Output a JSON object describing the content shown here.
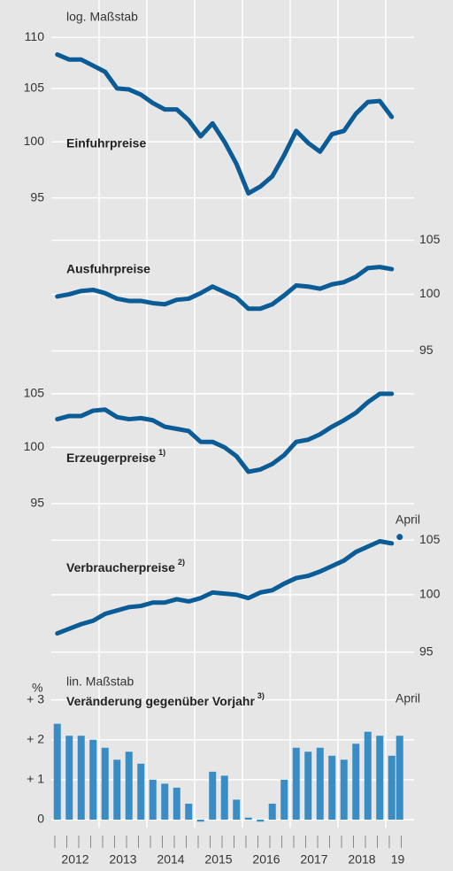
{
  "x_axis": {
    "labels": [
      "2012",
      "2013",
      "2014",
      "2015",
      "2016",
      "2017",
      "2018",
      "19"
    ]
  },
  "chart_data": [
    {
      "type": "line",
      "title": "Einfuhrpreise",
      "scale_label": "log. Maßstab",
      "log": true,
      "color": "#0b5c96",
      "ylim": [
        93,
        112
      ],
      "yticks": [
        95,
        100,
        105,
        110
      ],
      "axis_side": "left",
      "values": [
        108.3,
        107.8,
        107.8,
        107.2,
        106.6,
        105.0,
        104.9,
        104.4,
        103.6,
        103.0,
        103.0,
        102.0,
        100.5,
        101.7,
        100.0,
        98.0,
        95.4,
        96.0,
        96.9,
        98.8,
        101.0,
        99.9,
        99.1,
        100.7,
        101.0,
        102.6,
        103.7,
        103.8,
        102.3
      ]
    },
    {
      "type": "line",
      "title": "Ausfuhrpreise",
      "log": true,
      "color": "#0b5c96",
      "ylim": [
        93.6,
        106.4
      ],
      "yticks": [
        95,
        100,
        105
      ],
      "axis_side": "right",
      "values": [
        99.8,
        100.0,
        100.3,
        100.4,
        100.1,
        99.6,
        99.4,
        99.4,
        99.2,
        99.1,
        99.5,
        99.6,
        100.1,
        100.7,
        100.2,
        99.7,
        98.7,
        98.7,
        99.1,
        99.9,
        100.8,
        100.7,
        100.5,
        100.9,
        101.1,
        101.6,
        102.4,
        102.5,
        102.3
      ]
    },
    {
      "type": "line",
      "title": "Erzeugerpreise",
      "note": "1)",
      "log": true,
      "color": "#0b5c96",
      "ylim": [
        93.4,
        106.7
      ],
      "yticks": [
        95,
        100,
        105
      ],
      "axis_side": "left",
      "values": [
        102.6,
        102.9,
        102.9,
        103.4,
        103.5,
        102.8,
        102.6,
        102.7,
        102.5,
        101.9,
        101.7,
        101.5,
        100.5,
        100.5,
        100.0,
        99.2,
        97.8,
        98.0,
        98.5,
        99.3,
        100.5,
        100.7,
        101.2,
        101.9,
        102.5,
        103.2,
        104.2,
        105.0,
        105.0
      ]
    },
    {
      "type": "line",
      "title": "Verbraucherpreise",
      "note": "2)",
      "log": true,
      "color": "#0b5c96",
      "ylim": [
        94,
        106.7
      ],
      "yticks": [
        95,
        100,
        105
      ],
      "axis_side": "right",
      "values": [
        96.6,
        97.0,
        97.4,
        97.7,
        98.3,
        98.6,
        98.9,
        99.0,
        99.3,
        99.3,
        99.6,
        99.4,
        99.7,
        100.2,
        100.1,
        100.0,
        99.7,
        100.2,
        100.4,
        101.0,
        101.5,
        101.7,
        102.1,
        102.6,
        103.1,
        103.9,
        104.4,
        104.9,
        104.7
      ],
      "april_label": "April",
      "april_value": 105.3
    },
    {
      "type": "bar",
      "title": "Veränderung gegenüber Vorjahr",
      "note": "3)",
      "scale_label": "lin. Maßstab",
      "unit": "%",
      "log": false,
      "color": "#3a8cc4",
      "ylim": [
        -0.2,
        3.7
      ],
      "yticks": [
        {
          "value": 0,
          "label": "0"
        },
        {
          "value": 1,
          "label": "+ 1"
        },
        {
          "value": 2,
          "label": "+ 2"
        },
        {
          "value": 3,
          "label": "+ 3"
        }
      ],
      "axis_side": "left",
      "values": [
        2.4,
        2.1,
        2.1,
        2.0,
        1.8,
        1.5,
        1.7,
        1.4,
        1.0,
        0.9,
        0.8,
        0.4,
        -0.05,
        1.2,
        1.1,
        0.5,
        0.05,
        -0.05,
        0.4,
        1.0,
        1.8,
        1.7,
        1.8,
        1.6,
        1.5,
        1.9,
        2.2,
        2.1,
        1.6
      ],
      "april_label": "April",
      "april_value": 2.1
    }
  ]
}
